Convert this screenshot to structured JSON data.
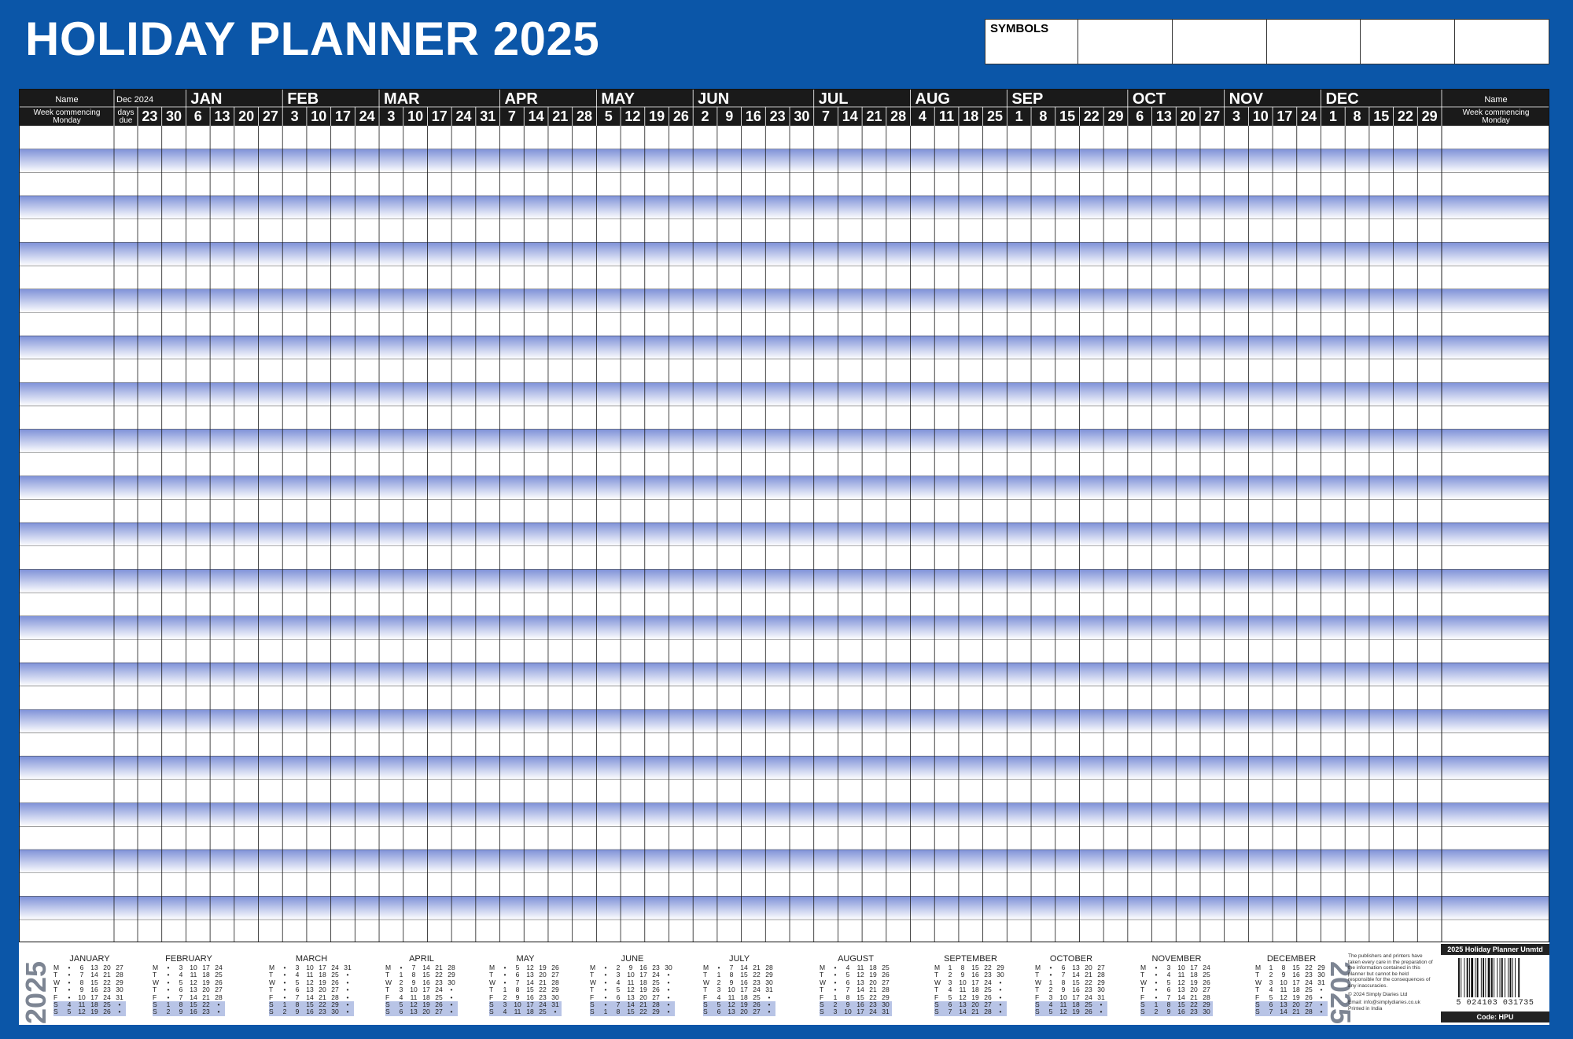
{
  "title": "HOLIDAY PLANNER 2025",
  "symbols": {
    "label": "SYMBOLS",
    "box_count": 5
  },
  "grid": {
    "name_header": "Name",
    "week_label": "Week commencing Monday",
    "dec_label": "Dec 2024",
    "days_due_label": "days due",
    "dec_weeks": [
      "23",
      "30"
    ],
    "months": [
      {
        "name": "JAN",
        "weeks": [
          "6",
          "13",
          "20",
          "27"
        ]
      },
      {
        "name": "FEB",
        "weeks": [
          "3",
          "10",
          "17",
          "24"
        ]
      },
      {
        "name": "MAR",
        "weeks": [
          "3",
          "10",
          "17",
          "24",
          "31"
        ]
      },
      {
        "name": "APR",
        "weeks": [
          "7",
          "14",
          "21",
          "28"
        ]
      },
      {
        "name": "MAY",
        "weeks": [
          "5",
          "12",
          "19",
          "26"
        ]
      },
      {
        "name": "JUN",
        "weeks": [
          "2",
          "9",
          "16",
          "23",
          "30"
        ]
      },
      {
        "name": "JUL",
        "weeks": [
          "7",
          "14",
          "21",
          "28"
        ]
      },
      {
        "name": "AUG",
        "weeks": [
          "4",
          "11",
          "18",
          "25"
        ]
      },
      {
        "name": "SEP",
        "weeks": [
          "1",
          "8",
          "15",
          "22",
          "29"
        ]
      },
      {
        "name": "OCT",
        "weeks": [
          "6",
          "13",
          "20",
          "27"
        ]
      },
      {
        "name": "NOV",
        "weeks": [
          "3",
          "10",
          "17",
          "24"
        ]
      },
      {
        "name": "DEC",
        "weeks": [
          "1",
          "8",
          "15",
          "22",
          "29"
        ]
      }
    ],
    "body_rows": 35,
    "colors": {
      "header": "#1a1a1a",
      "stripe_top": "#7f92d8",
      "stripe_bottom": "#ffffff",
      "border": "#0b56a8"
    }
  },
  "footer": {
    "year_left": "2025",
    "year_right": "2025",
    "day_letters": [
      "M",
      "T",
      "W",
      "T",
      "F",
      "S",
      "S"
    ],
    "months": [
      {
        "name": "JANUARY",
        "cols": [
          [
            "•",
            "•",
            "•",
            "•",
            "•",
            "4",
            "5"
          ],
          [
            "6",
            "7",
            "8",
            "9",
            "10",
            "11",
            "12"
          ],
          [
            "13",
            "14",
            "15",
            "16",
            "17",
            "18",
            "19"
          ],
          [
            "20",
            "21",
            "22",
            "23",
            "24",
            "25",
            "26"
          ],
          [
            "27",
            "28",
            "29",
            "30",
            "31",
            "•",
            "•"
          ]
        ]
      },
      {
        "name": "FEBRUARY",
        "cols": [
          [
            "•",
            "•",
            "•",
            "•",
            "•",
            "1",
            "2"
          ],
          [
            "3",
            "4",
            "5",
            "6",
            "7",
            "8",
            "9"
          ],
          [
            "10",
            "11",
            "12",
            "13",
            "14",
            "15",
            "16"
          ],
          [
            "17",
            "18",
            "19",
            "20",
            "21",
            "22",
            "23"
          ],
          [
            "24",
            "25",
            "26",
            "27",
            "28",
            "•",
            "•"
          ]
        ]
      },
      {
        "name": "MARCH",
        "cols": [
          [
            "•",
            "•",
            "•",
            "•",
            "•",
            "1",
            "2"
          ],
          [
            "3",
            "4",
            "5",
            "6",
            "7",
            "8",
            "9"
          ],
          [
            "10",
            "11",
            "12",
            "13",
            "14",
            "15",
            "16"
          ],
          [
            "17",
            "18",
            "19",
            "20",
            "21",
            "22",
            "23"
          ],
          [
            "24",
            "25",
            "26",
            "27",
            "28",
            "29",
            "30"
          ],
          [
            "31",
            "•",
            "•",
            "•",
            "•",
            "•",
            "•"
          ]
        ]
      },
      {
        "name": "APRIL",
        "cols": [
          [
            "•",
            "1",
            "2",
            "3",
            "4",
            "5",
            "6"
          ],
          [
            "7",
            "8",
            "9",
            "10",
            "11",
            "12",
            "13"
          ],
          [
            "14",
            "15",
            "16",
            "17",
            "18",
            "19",
            "20"
          ],
          [
            "21",
            "22",
            "23",
            "24",
            "25",
            "26",
            "27"
          ],
          [
            "28",
            "29",
            "30",
            "•",
            "•",
            "•",
            "•"
          ]
        ]
      },
      {
        "name": "MAY",
        "cols": [
          [
            "•",
            "•",
            "•",
            "1",
            "2",
            "3",
            "4"
          ],
          [
            "5",
            "6",
            "7",
            "8",
            "9",
            "10",
            "11"
          ],
          [
            "12",
            "13",
            "14",
            "15",
            "16",
            "17",
            "18"
          ],
          [
            "19",
            "20",
            "21",
            "22",
            "23",
            "24",
            "25"
          ],
          [
            "26",
            "27",
            "28",
            "29",
            "30",
            "31",
            "•"
          ]
        ]
      },
      {
        "name": "JUNE",
        "cols": [
          [
            "•",
            "•",
            "•",
            "•",
            "•",
            "•",
            "1"
          ],
          [
            "2",
            "3",
            "4",
            "5",
            "6",
            "7",
            "8"
          ],
          [
            "9",
            "10",
            "11",
            "12",
            "13",
            "14",
            "15"
          ],
          [
            "16",
            "17",
            "18",
            "19",
            "20",
            "21",
            "22"
          ],
          [
            "23",
            "24",
            "25",
            "26",
            "27",
            "28",
            "29"
          ],
          [
            "30",
            "•",
            "•",
            "•",
            "•",
            "•",
            "•"
          ]
        ]
      },
      {
        "name": "JULY",
        "cols": [
          [
            "•",
            "1",
            "2",
            "3",
            "4",
            "5",
            "6"
          ],
          [
            "7",
            "8",
            "9",
            "10",
            "11",
            "12",
            "13"
          ],
          [
            "14",
            "15",
            "16",
            "17",
            "18",
            "19",
            "20"
          ],
          [
            "21",
            "22",
            "23",
            "24",
            "25",
            "26",
            "27"
          ],
          [
            "28",
            "29",
            "30",
            "31",
            "•",
            "•",
            "•"
          ]
        ]
      },
      {
        "name": "AUGUST",
        "cols": [
          [
            "•",
            "•",
            "•",
            "•",
            "1",
            "2",
            "3"
          ],
          [
            "4",
            "5",
            "6",
            "7",
            "8",
            "9",
            "10"
          ],
          [
            "11",
            "12",
            "13",
            "14",
            "15",
            "16",
            "17"
          ],
          [
            "18",
            "19",
            "20",
            "21",
            "22",
            "23",
            "24"
          ],
          [
            "25",
            "26",
            "27",
            "28",
            "29",
            "30",
            "31"
          ]
        ]
      },
      {
        "name": "SEPTEMBER",
        "cols": [
          [
            "1",
            "2",
            "3",
            "4",
            "5",
            "6",
            "7"
          ],
          [
            "8",
            "9",
            "10",
            "11",
            "12",
            "13",
            "14"
          ],
          [
            "15",
            "16",
            "17",
            "18",
            "19",
            "20",
            "21"
          ],
          [
            "22",
            "23",
            "24",
            "25",
            "26",
            "27",
            "28"
          ],
          [
            "29",
            "30",
            "•",
            "•",
            "•",
            "•",
            "•"
          ]
        ]
      },
      {
        "name": "OCTOBER",
        "cols": [
          [
            "•",
            "•",
            "1",
            "2",
            "3",
            "4",
            "5"
          ],
          [
            "6",
            "7",
            "8",
            "9",
            "10",
            "11",
            "12"
          ],
          [
            "13",
            "14",
            "15",
            "16",
            "17",
            "18",
            "19"
          ],
          [
            "20",
            "21",
            "22",
            "23",
            "24",
            "25",
            "26"
          ],
          [
            "27",
            "28",
            "29",
            "30",
            "31",
            "•",
            "•"
          ]
        ]
      },
      {
        "name": "NOVEMBER",
        "cols": [
          [
            "•",
            "•",
            "•",
            "•",
            "•",
            "1",
            "2"
          ],
          [
            "3",
            "4",
            "5",
            "6",
            "7",
            "8",
            "9"
          ],
          [
            "10",
            "11",
            "12",
            "13",
            "14",
            "15",
            "16"
          ],
          [
            "17",
            "18",
            "19",
            "20",
            "21",
            "22",
            "23"
          ],
          [
            "24",
            "25",
            "26",
            "27",
            "28",
            "29",
            "30"
          ]
        ]
      },
      {
        "name": "DECEMBER",
        "cols": [
          [
            "1",
            "2",
            "3",
            "4",
            "5",
            "6",
            "7"
          ],
          [
            "8",
            "9",
            "10",
            "11",
            "12",
            "13",
            "14"
          ],
          [
            "15",
            "16",
            "17",
            "18",
            "19",
            "20",
            "21"
          ],
          [
            "22",
            "23",
            "24",
            "25",
            "26",
            "27",
            "28"
          ],
          [
            "29",
            "30",
            "31",
            "•",
            "•",
            "•",
            "•"
          ]
        ]
      }
    ],
    "disclaimer": "The publishers and printers have taken every care in the preparation of the information contained in this planner but cannot be held responsible for the consequences of any inaccuracies.",
    "copyright": "© 2024 Simply Diaries Ltd",
    "email": "Email: info@simplydiaries.co.uk",
    "printed": "Printed in India",
    "product_name": "2025 Holiday Planner Unmtd",
    "barcode_number": "5 024103 031735",
    "product_code": "Code: HPU"
  }
}
